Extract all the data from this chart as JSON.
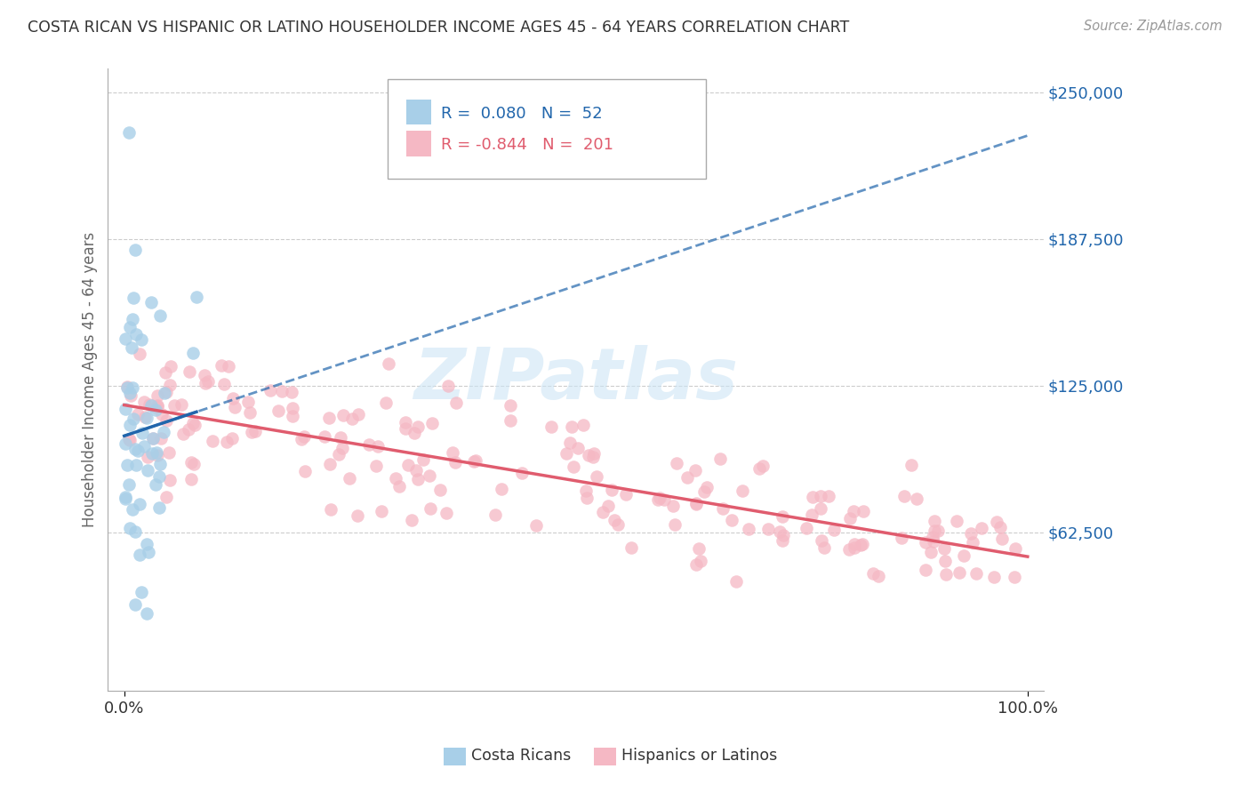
{
  "title": "COSTA RICAN VS HISPANIC OR LATINO HOUSEHOLDER INCOME AGES 45 - 64 YEARS CORRELATION CHART",
  "source": "Source: ZipAtlas.com",
  "ylabel": "Householder Income Ages 45 - 64 years",
  "yticks": [
    62500,
    125000,
    187500,
    250000
  ],
  "ytick_labels": [
    "$62,500",
    "$125,000",
    "$187,500",
    "$250,000"
  ],
  "xtick_labels": [
    "0.0%",
    "100.0%"
  ],
  "r_blue": 0.08,
  "n_blue": 52,
  "r_pink": -0.844,
  "n_pink": 201,
  "blue_color": "#a8cfe8",
  "pink_color": "#f5b8c4",
  "blue_line_color": "#2166ac",
  "pink_line_color": "#e05c6e",
  "watermark_color": "#cde5f5",
  "legend_label_blue": "Costa Ricans",
  "legend_label_pink": "Hispanics or Latinos",
  "background_color": "#ffffff",
  "grid_color": "#cccccc",
  "title_color": "#333333",
  "axis_label_color": "#666666",
  "right_tick_color": "#2166ac"
}
